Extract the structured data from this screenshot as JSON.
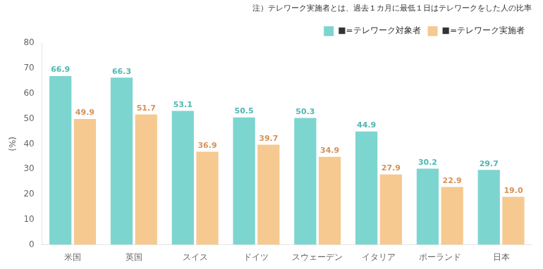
{
  "chart_data": {
    "type": "bar",
    "annotations": [
      "注）テレワーク実施者とは、過去１カ月に最低１日はテレワークをした人の比率"
    ],
    "ylabel": "(%)",
    "categories": [
      "米国",
      "英国",
      "スイス",
      "ドイツ",
      "スウェーデン",
      "イタリア",
      "ポーランド",
      "日本"
    ],
    "series": [
      {
        "name": "■=テレワーク対象者",
        "color": "#7dd5d0",
        "values": [
          66.9,
          66.3,
          53.1,
          50.5,
          50.3,
          44.9,
          30.2,
          29.7
        ],
        "value_labels": [
          "66.9",
          "66.3",
          "53.1",
          "50.5",
          "50.3",
          "44.9",
          "30.2",
          "29.7"
        ]
      },
      {
        "name": "■=テレワーク実施者",
        "color": "#f5c990",
        "values": [
          49.9,
          51.7,
          36.9,
          39.7,
          34.9,
          27.9,
          22.9,
          19.0
        ],
        "value_labels": [
          "49.9",
          "51.7",
          "36.9",
          "39.7",
          "34.9",
          "27.9",
          "22.9",
          "19.0"
        ]
      }
    ],
    "ylim": [
      0,
      80
    ],
    "yticks": [
      0,
      10,
      20,
      30,
      40,
      50,
      60,
      70,
      80
    ],
    "grid": false,
    "legend": "top",
    "data_labels": true
  }
}
